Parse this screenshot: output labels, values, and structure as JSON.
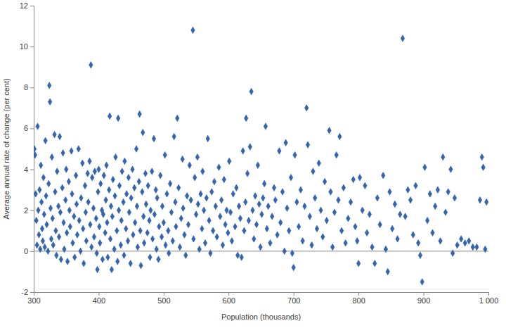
{
  "chart_data": {
    "type": "scatter",
    "x_label": "Population (thousands)",
    "y_label": "Average annual rate of change (per cent)",
    "color": "#3464ad",
    "marker": "diamond",
    "grid": false,
    "xlim": [
      300,
      1000
    ],
    "xticks": [
      300,
      400,
      500,
      600,
      700,
      800,
      900,
      {
        "value": 1000,
        "label": "1 000"
      }
    ],
    "ylim": [
      -2,
      12
    ],
    "yticks": [
      -2,
      0,
      2,
      4,
      6,
      8,
      10,
      12
    ],
    "x": [
      301,
      302,
      303,
      304,
      305,
      306,
      307,
      308,
      309,
      310,
      311,
      312,
      313,
      314,
      315,
      316,
      317,
      318,
      319,
      320,
      322,
      323,
      324,
      325,
      326,
      327,
      328,
      329,
      330,
      332,
      333,
      334,
      335,
      336,
      338,
      339,
      340,
      341,
      342,
      344,
      345,
      346,
      347,
      349,
      350,
      351,
      352,
      354,
      355,
      356,
      358,
      359,
      360,
      362,
      363,
      365,
      366,
      367,
      369,
      370,
      372,
      373,
      375,
      376,
      377,
      379,
      380,
      381,
      383,
      384,
      386,
      387,
      388,
      389,
      390,
      392,
      393,
      394,
      396,
      397,
      398,
      399,
      400,
      401,
      402,
      403,
      405,
      406,
      407,
      408,
      410,
      411,
      412,
      413,
      414,
      416,
      417,
      418,
      419,
      420,
      421,
      422,
      424,
      425,
      426,
      428,
      429,
      430,
      431,
      432,
      434,
      435,
      436,
      438,
      439,
      440,
      442,
      443,
      445,
      446,
      447,
      449,
      450,
      452,
      453,
      455,
      456,
      458,
      459,
      460,
      462,
      463,
      464,
      465,
      467,
      468,
      469,
      470,
      472,
      473,
      475,
      476,
      478,
      479,
      480,
      482,
      483,
      485,
      486,
      488,
      489,
      490,
      492,
      493,
      495,
      497,
      498,
      500,
      502,
      503,
      505,
      507,
      508,
      510,
      512,
      514,
      516,
      518,
      519,
      521,
      523,
      525,
      527,
      529,
      530,
      532,
      534,
      536,
      538,
      540,
      542,
      545,
      546,
      548,
      550,
      552,
      553,
      555,
      557,
      559,
      560,
      562,
      564,
      566,
      568,
      570,
      572,
      574,
      576,
      578,
      580,
      582,
      585,
      587,
      589,
      591,
      593,
      595,
      597,
      599,
      601,
      603,
      605,
      607,
      610,
      612,
      614,
      616,
      618,
      620,
      622,
      624,
      626,
      627,
      629,
      631,
      633,
      635,
      637,
      639,
      641,
      643,
      645,
      647,
      649,
      651,
      653,
      655,
      657,
      659,
      661,
      664,
      667,
      670,
      672,
      675,
      678,
      680,
      683,
      686,
      688,
      690,
      693,
      696,
      698,
      700,
      702,
      705,
      708,
      711,
      714,
      717,
      720,
      722,
      725,
      728,
      730,
      733,
      736,
      739,
      742,
      745,
      748,
      751,
      755,
      757,
      760,
      763,
      766,
      769,
      771,
      774,
      777,
      780,
      784,
      788,
      792,
      795,
      798,
      800,
      802,
      806,
      810,
      813,
      817,
      821,
      825,
      829,
      833,
      838,
      842,
      845,
      848,
      852,
      856,
      860,
      864,
      868,
      872,
      876,
      880,
      884,
      888,
      892,
      895,
      898,
      902,
      906,
      910,
      914,
      918,
      922,
      926,
      930,
      934,
      938,
      942,
      945,
      948,
      952,
      958,
      964,
      970,
      976,
      982,
      987,
      990,
      992,
      995,
      997
    ],
    "values": [
      5.0,
      4.7,
      2.8,
      1.5,
      0.3,
      6.1,
      2.0,
      0.8,
      3.0,
      0.1,
      4.2,
      2.4,
      1.1,
      0.5,
      3.6,
      1.8,
      0.2,
      5.4,
      2.7,
      1.3,
      0.0,
      3.3,
      8.1,
      7.3,
      2.1,
      0.6,
      4.6,
      1.6,
      0.3,
      5.7,
      2.9,
      1.0,
      -0.2,
      3.9,
      2.2,
      0.7,
      5.6,
      1.9,
      -0.4,
      3.1,
      4.8,
      1.4,
      0.1,
      2.5,
      4.0,
      0.9,
      -0.5,
      3.4,
      2.0,
      1.2,
      4.9,
      2.8,
      0.4,
      1.7,
      -0.3,
      3.7,
      2.3,
      0.8,
      5.0,
      1.5,
      0.0,
      2.6,
      4.3,
      1.1,
      -0.6,
      3.2,
      1.9,
      0.5,
      3.8,
      2.4,
      4.4,
      1.3,
      9.1,
      0.2,
      3.6,
      2.1,
      0.7,
      3.9,
      1.6,
      -0.1,
      -0.9,
      2.9,
      4.0,
      1.2,
      0.4,
      3.3,
      2.0,
      -0.4,
      1.8,
      3.7,
      0.9,
      2.5,
      4.2,
      1.4,
      -0.3,
      3.0,
      6.6,
      0.6,
      2.2,
      -0.9,
      1.7,
      3.5,
      0.1,
      2.7,
      4.6,
      1.0,
      -0.5,
      6.5,
      2.0,
      3.2,
      0.3,
      1.5,
      3.9,
      2.4,
      -0.2,
      4.4,
      1.1,
      2.8,
      0.5,
      3.6,
      1.9,
      -0.6,
      2.6,
      4.0,
      0.8,
      3.1,
      1.4,
      5.0,
      2.2,
      0.2,
      3.4,
      6.7,
      1.0,
      -0.7,
      2.9,
      5.8,
      1.7,
      0.4,
      3.8,
      2.3,
      0.9,
      3.2,
      1.5,
      -0.3,
      2.0,
      3.9,
      0.6,
      5.5,
      1.8,
      3.0,
      0.1,
      2.6,
      -0.4,
      1.2,
      3.7,
      0.7,
      2.2,
      1.4,
      4.7,
      0.3,
      2.8,
      1.0,
      -0.1,
      3.3,
      1.9,
      0.5,
      5.6,
      2.4,
      1.2,
      6.5,
      3.1,
      0.2,
      1.6,
      4.5,
      2.1,
      0.8,
      -0.2,
      2.7,
      1.3,
      4.2,
      2.5,
      10.8,
      0.6,
      3.6,
      1.8,
      4.6,
      2.3,
      0.1,
      2.8,
      1.1,
      3.9,
      2.0,
      0.4,
      2.6,
      5.5,
      1.5,
      -0.1,
      2.9,
      1.0,
      3.4,
      2.2,
      0.7,
      4.1,
      1.7,
      2.5,
      0.3,
      3.5,
      1.3,
      2.0,
      0.9,
      4.4,
      1.9,
      0.5,
      2.8,
      1.2,
      3.1,
      -0.2,
      2.2,
      1.6,
      -0.3,
      4.9,
      1.0,
      2.4,
      6.5,
      3.8,
      1.5,
      5.1,
      7.8,
      2.0,
      0.6,
      2.7,
      1.3,
      4.2,
      2.3,
      0.2,
      1.8,
      2.6,
      3.3,
      6.1,
      1.1,
      2.2,
      0.4,
      1.7,
      3.1,
      2.5,
      0.8,
      4.9,
      1.4,
      2.9,
      0.0,
      5.3,
      2.1,
      1.0,
      3.6,
      -0.1,
      -0.8,
      4.7,
      2.4,
      1.2,
      3.0,
      0.5,
      2.2,
      7.0,
      5.2,
      1.7,
      0.3,
      3.9,
      2.6,
      1.1,
      4.3,
      2.0,
      0.7,
      3.4,
      1.5,
      5.9,
      2.9,
      0.2,
      1.9,
      4.7,
      2.5,
      5.6,
      1.0,
      3.1,
      0.4,
      1.6,
      2.4,
      3.5,
      1.2,
      0.5,
      -0.6,
      3.6,
      2.0,
      3.2,
      0.9,
      1.8,
      0.2,
      -0.6,
      2.6,
      1.3,
      3.7,
      0.1,
      -1.0,
      2.9,
      1.1,
      2.3,
      0.6,
      1.8,
      10.4,
      1.7,
      3.0,
      2.5,
      0.8,
      3.2,
      0.4,
      -0.2,
      -1.5,
      4.1,
      1.5,
      2.8,
      0.9,
      2.2,
      3.0,
      0.5,
      4.6,
      1.9,
      2.9,
      4.0,
      -0.1,
      2.6,
      0.3,
      0.6,
      0.4,
      0.5,
      0.2,
      0.2,
      2.5,
      4.6,
      4.1,
      0.1,
      2.4
    ]
  }
}
